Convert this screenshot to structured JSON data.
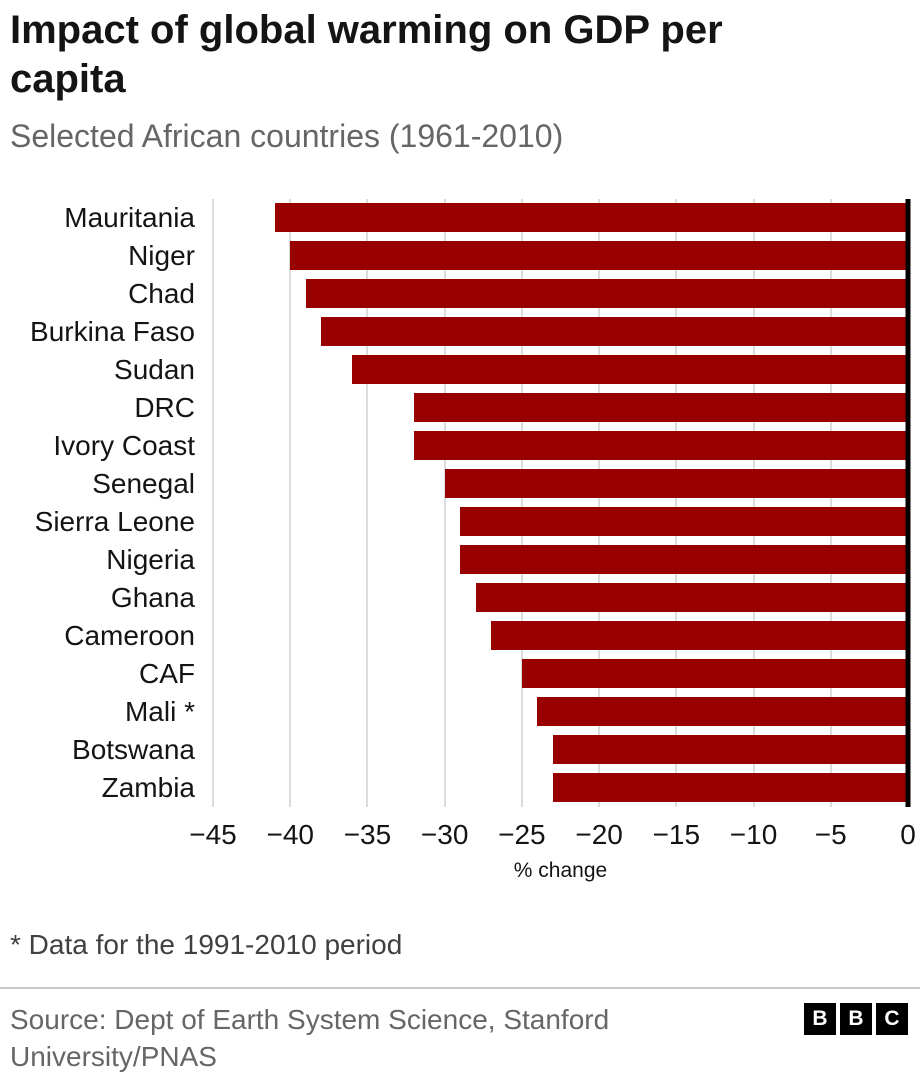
{
  "header": {
    "title": "Impact of global warming on GDP per capita",
    "subtitle": "Selected African countries (1961-2010)"
  },
  "chart_data": {
    "type": "bar",
    "orientation": "horizontal",
    "title": "Impact of global warming on GDP per capita",
    "subtitle": "Selected African countries (1961-2010)",
    "categories": [
      "Mauritania",
      "Niger",
      "Chad",
      "Burkina Faso",
      "Sudan",
      "DRC",
      "Ivory Coast",
      "Senegal",
      "Sierra Leone",
      "Nigeria",
      "Ghana",
      "Cameroon",
      "CAF",
      "Mali *",
      "Botswana",
      "Zambia"
    ],
    "values": [
      -41,
      -40,
      -39,
      -38,
      -36,
      -32,
      -32,
      -30,
      -29,
      -29,
      -28,
      -27,
      -25,
      -24,
      -23,
      -23
    ],
    "xlabel": "% change",
    "ylabel": "",
    "xlim": [
      -45,
      0
    ],
    "xticks": [
      -45,
      -40,
      -35,
      -30,
      -25,
      -20,
      -15,
      -10,
      -5,
      0
    ],
    "xtick_labels": [
      "−45",
      "−40",
      "−35",
      "−30",
      "−25",
      "−20",
      "−15",
      "−10",
      "−5",
      "0"
    ],
    "grid": true,
    "legend": "none",
    "bar_color": "#990000",
    "gridline_color": "#dcdcdc",
    "zero_line_color": "#000000"
  },
  "footer": {
    "footnote": "* Data for the 1991-2010 period",
    "source": "Source: Dept of Earth System Science, Stanford University/PNAS",
    "logo_letters": [
      "B",
      "B",
      "C"
    ]
  }
}
